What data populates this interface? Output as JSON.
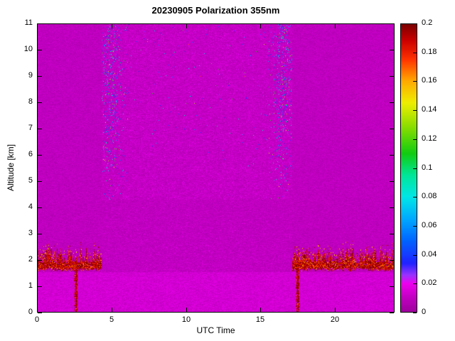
{
  "chart_data": {
    "type": "heatmap",
    "title": "20230905 Polarization 355nm",
    "xlabel": "UTC Time",
    "ylabel": "Altitude [km]",
    "x_range": [
      0,
      24
    ],
    "y_range": [
      0,
      11
    ],
    "x_ticks": [
      0,
      5,
      10,
      15,
      20
    ],
    "x_tick_labels": [
      "0",
      "5",
      "10",
      "15",
      "20"
    ],
    "y_ticks": [
      0,
      1,
      2,
      3,
      4,
      5,
      6,
      7,
      8,
      9,
      10,
      11
    ],
    "y_tick_labels": [
      "0",
      "1",
      "2",
      "3",
      "4",
      "5",
      "6",
      "7",
      "8",
      "9",
      "10",
      "11"
    ],
    "grid": false,
    "colorbar": {
      "range": [
        0,
        0.2
      ],
      "ticks": [
        0,
        0.02,
        0.04,
        0.06,
        0.08,
        0.1,
        0.12,
        0.14,
        0.16,
        0.18,
        0.2
      ],
      "tick_labels": [
        "0",
        "0.02",
        "0.04",
        "0.06",
        "0.08",
        "0.1",
        "0.12",
        "0.14",
        "0.16",
        "0.18",
        "0.2"
      ],
      "position": "right"
    },
    "colormap_stops": [
      [
        0.0,
        "#9C009C"
      ],
      [
        0.01,
        "#C000C0"
      ],
      [
        0.02,
        "#EE00EE"
      ],
      [
        0.026,
        "#9933FF"
      ],
      [
        0.034,
        "#2222FF"
      ],
      [
        0.05,
        "#0066FF"
      ],
      [
        0.065,
        "#00AAFF"
      ],
      [
        0.08,
        "#00E6E6"
      ],
      [
        0.095,
        "#00E699"
      ],
      [
        0.11,
        "#11CC11"
      ],
      [
        0.128,
        "#88DD00"
      ],
      [
        0.145,
        "#EEEE00"
      ],
      [
        0.16,
        "#FFAA00"
      ],
      [
        0.175,
        "#FF3300"
      ],
      [
        0.188,
        "#CC0000"
      ],
      [
        0.2,
        "#770000"
      ]
    ],
    "features": {
      "background_value_range": [
        0.006,
        0.013
      ],
      "surface_layer": {
        "y_top": 1.55,
        "value_range": [
          0.01,
          0.018
        ],
        "description": "brighter magenta near-surface layer across all times, 0-1.5 km"
      },
      "boundary_layer_band": {
        "time_ranges": [
          [
            0,
            4.35
          ],
          [
            17.15,
            24
          ]
        ],
        "altitude_range": [
          1.56,
          2.45
        ],
        "value_range": [
          0.15,
          0.2
        ],
        "description": "dark red high-depolarization band at aerosol layer top ~1.6-2.3 km during nighttime"
      },
      "vertical_spikes": [
        {
          "time": 2.62,
          "half_width": 0.09,
          "altitude_top": 1.97
        },
        {
          "time": 17.5,
          "half_width": 0.09,
          "altitude_top": 2.12
        }
      ],
      "daytime_noise_region": {
        "time_range": [
          4.35,
          17.15
        ],
        "altitude_bottom": 4.3,
        "edge_dot_columns": [
          4.95,
          16.5
        ],
        "dot_value_range": [
          0.028,
          0.19
        ],
        "description": "daytime solar-background speckle noise above ~4.5 km with blue/cyan dots densest near 4.5-5.5 and 16-17 UTC at high altitude"
      }
    }
  }
}
